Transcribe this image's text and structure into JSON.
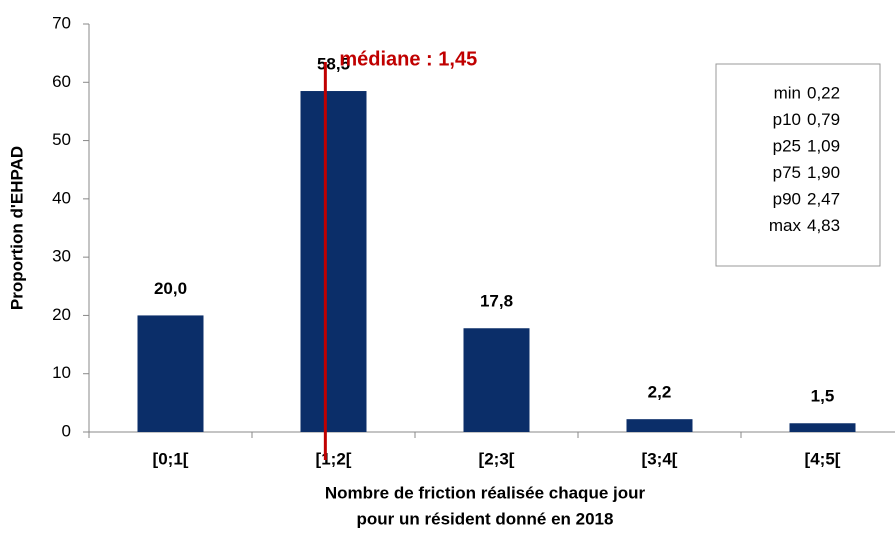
{
  "chart_data": {
    "type": "bar",
    "ylabel": "Proportion d'EHPAD",
    "xlabel": [
      "Nombre de friction réalisée chaque jour",
      "pour un résident donné en 2018"
    ],
    "categories": [
      "[0;1[",
      "[1;2[",
      "[2;3[",
      "[3;4[",
      "[4;5["
    ],
    "values": [
      20.0,
      58.5,
      17.8,
      2.2,
      1.5
    ],
    "value_labels": [
      "20,0",
      "58,5",
      "17,8",
      "2,2",
      "1,5"
    ],
    "color": "#0b2e69",
    "ylim": [
      0,
      70
    ],
    "yticks": [
      0,
      10,
      20,
      30,
      40,
      50,
      60,
      70
    ],
    "median": {
      "value": 1.45,
      "label": "médiane : 1,45",
      "color": "#c00000"
    },
    "stats": [
      {
        "label": "min",
        "value": "0,22"
      },
      {
        "label": "p10",
        "value": "0,79"
      },
      {
        "label": "p25",
        "value": "1,09"
      },
      {
        "label": "p75",
        "value": "1,90"
      },
      {
        "label": "p90",
        "value": "2,47"
      },
      {
        "label": "max",
        "value": "4,83"
      }
    ]
  }
}
